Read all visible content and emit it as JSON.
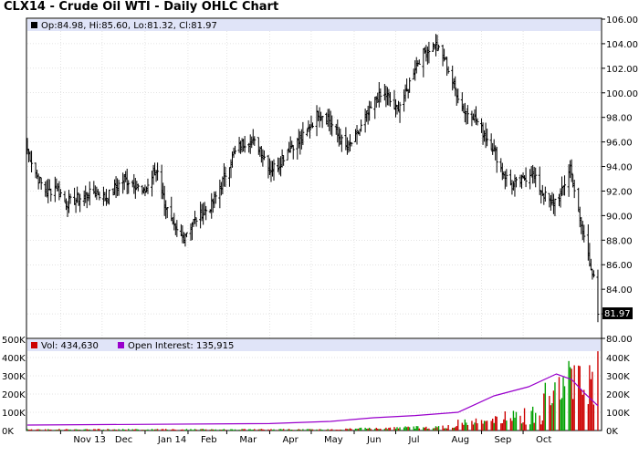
{
  "title": "CLX14 - Crude Oil WTI - Daily OHLC Chart",
  "colors": {
    "legend_band": "#e0e4f8",
    "bar": "#000000",
    "volume_up": "#00a000",
    "volume_down": "#cc0000",
    "open_interest": "#9900cc",
    "grid": "#c8c8c8"
  },
  "chart_data": [
    {
      "type": "ohlc",
      "legend": "Op:84.98, Hi:85.60, Lo:81.32, Cl:81.97",
      "last_price_label": "81.97",
      "ylim": [
        80,
        106
      ],
      "y_ticks": [
        "80.00",
        "82.00",
        "84.00",
        "86.00",
        "88.00",
        "90.00",
        "92.00",
        "94.00",
        "96.00",
        "98.00",
        "100.00",
        "102.00",
        "104.00",
        "106.00"
      ],
      "x_ticks": [
        "Nov 13",
        "Dec",
        "Jan 14",
        "Feb",
        "Mar",
        "Apr",
        "May",
        "Jun",
        "Jul",
        "Aug",
        "Sep",
        "Oct"
      ],
      "grid": true,
      "close_series": [
        {
          "date": "2013-10-08",
          "close": 95.4
        },
        {
          "date": "2013-10-15",
          "close": 93.2
        },
        {
          "date": "2013-10-22",
          "close": 91.8
        },
        {
          "date": "2013-10-29",
          "close": 92.4
        },
        {
          "date": "2013-11-05",
          "close": 91.0
        },
        {
          "date": "2013-11-12",
          "close": 91.3
        },
        {
          "date": "2013-11-19",
          "close": 91.6
        },
        {
          "date": "2013-11-26",
          "close": 92.0
        },
        {
          "date": "2013-12-03",
          "close": 91.4
        },
        {
          "date": "2013-12-10",
          "close": 92.2
        },
        {
          "date": "2013-12-17",
          "close": 93.0
        },
        {
          "date": "2013-12-24",
          "close": 92.6
        },
        {
          "date": "2013-12-31",
          "close": 91.8
        },
        {
          "date": "2014-01-07",
          "close": 93.4
        },
        {
          "date": "2014-01-10",
          "close": 93.8
        },
        {
          "date": "2014-01-14",
          "close": 91.5
        },
        {
          "date": "2014-01-21",
          "close": 89.0
        },
        {
          "date": "2014-01-28",
          "close": 88.2
        },
        {
          "date": "2014-02-04",
          "close": 89.4
        },
        {
          "date": "2014-02-11",
          "close": 90.2
        },
        {
          "date": "2014-02-18",
          "close": 90.8
        },
        {
          "date": "2014-02-25",
          "close": 92.5
        },
        {
          "date": "2014-03-04",
          "close": 94.6
        },
        {
          "date": "2014-03-11",
          "close": 95.8
        },
        {
          "date": "2014-03-18",
          "close": 96.2
        },
        {
          "date": "2014-03-25",
          "close": 95.5
        },
        {
          "date": "2014-04-01",
          "close": 93.8
        },
        {
          "date": "2014-04-08",
          "close": 94.2
        },
        {
          "date": "2014-04-15",
          "close": 95.6
        },
        {
          "date": "2014-04-22",
          "close": 96.0
        },
        {
          "date": "2014-04-29",
          "close": 97.0
        },
        {
          "date": "2014-05-06",
          "close": 98.4
        },
        {
          "date": "2014-05-13",
          "close": 98.0
        },
        {
          "date": "2014-05-20",
          "close": 96.5
        },
        {
          "date": "2014-05-27",
          "close": 95.4
        },
        {
          "date": "2014-06-03",
          "close": 96.6
        },
        {
          "date": "2014-06-10",
          "close": 98.0
        },
        {
          "date": "2014-06-17",
          "close": 99.6
        },
        {
          "date": "2014-06-24",
          "close": 99.8
        },
        {
          "date": "2014-07-01",
          "close": 98.6
        },
        {
          "date": "2014-07-08",
          "close": 99.8
        },
        {
          "date": "2014-07-15",
          "close": 102.2
        },
        {
          "date": "2014-07-22",
          "close": 103.4
        },
        {
          "date": "2014-07-29",
          "close": 103.9
        },
        {
          "date": "2014-08-05",
          "close": 102.8
        },
        {
          "date": "2014-08-12",
          "close": 100.6
        },
        {
          "date": "2014-08-19",
          "close": 98.6
        },
        {
          "date": "2014-08-26",
          "close": 98.2
        },
        {
          "date": "2014-09-02",
          "close": 96.8
        },
        {
          "date": "2014-09-09",
          "close": 95.6
        },
        {
          "date": "2014-09-16",
          "close": 93.6
        },
        {
          "date": "2014-09-23",
          "close": 92.4
        },
        {
          "date": "2014-09-30",
          "close": 92.8
        },
        {
          "date": "2014-10-07",
          "close": 93.6
        },
        {
          "date": "2014-10-14",
          "close": 92.0
        },
        {
          "date": "2014-10-21",
          "close": 91.0
        },
        {
          "date": "2014-10-28",
          "close": 91.6
        },
        {
          "date": "2014-11-04",
          "close": 94.0
        },
        {
          "date": "2014-11-11",
          "close": 89.6
        },
        {
          "date": "2014-11-18",
          "close": 86.4
        },
        {
          "date": "2014-11-21",
          "close": 84.8
        },
        {
          "date": "2014-11-24",
          "close": 81.97
        }
      ]
    },
    {
      "type": "volume",
      "legend_volume": "Vol: 434,630",
      "legend_open_interest": "Open Interest: 135,915",
      "ylim": [
        0,
        500000
      ],
      "y_ticks": [
        "0K",
        "100K",
        "200K",
        "300K",
        "400K",
        "500K"
      ],
      "open_interest": [
        {
          "date": "2013-10-08",
          "value": 30000
        },
        {
          "date": "2014-04-01",
          "value": 38000
        },
        {
          "date": "2014-05-15",
          "value": 50000
        },
        {
          "date": "2014-06-15",
          "value": 70000
        },
        {
          "date": "2014-07-15",
          "value": 82000
        },
        {
          "date": "2014-08-15",
          "value": 100000
        },
        {
          "date": "2014-09-10",
          "value": 190000
        },
        {
          "date": "2014-10-05",
          "value": 240000
        },
        {
          "date": "2014-10-25",
          "value": 310000
        },
        {
          "date": "2014-11-05",
          "value": 280000
        },
        {
          "date": "2014-11-15",
          "value": 200000
        },
        {
          "date": "2014-11-24",
          "value": 135915
        }
      ]
    }
  ]
}
